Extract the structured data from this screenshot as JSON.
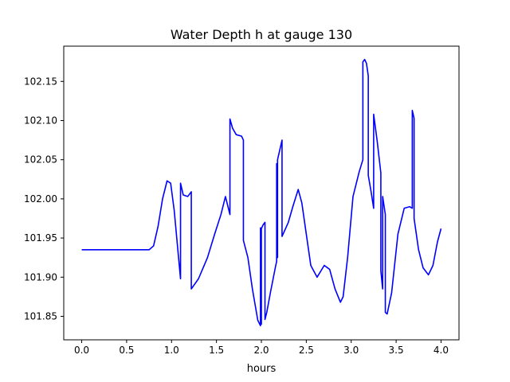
{
  "chart_data": {
    "type": "line",
    "title": "Water Depth h at gauge 130",
    "xlabel": "hours",
    "ylabel": "",
    "xlim": [
      -0.2,
      4.2
    ],
    "ylim": [
      101.82,
      102.195
    ],
    "x_ticks": [
      0.0,
      0.5,
      1.0,
      1.5,
      2.0,
      2.5,
      3.0,
      3.5,
      4.0
    ],
    "x_tick_labels": [
      "0.0",
      "0.5",
      "1.0",
      "1.5",
      "2.0",
      "2.5",
      "3.0",
      "3.5",
      "4.0"
    ],
    "y_ticks": [
      101.85,
      101.9,
      101.95,
      102.0,
      102.05,
      102.1,
      102.15
    ],
    "y_tick_labels": [
      "101.85",
      "101.90",
      "101.95",
      "102.00",
      "102.05",
      "102.10",
      "102.15"
    ],
    "grid": false,
    "legend": null,
    "series": [
      {
        "color": "#0000ff",
        "x": [
          0.0,
          0.3,
          0.6,
          0.75,
          0.8,
          0.85,
          0.9,
          0.95,
          0.99,
          1.03,
          1.07,
          1.1,
          1.1,
          1.13,
          1.18,
          1.22,
          1.22,
          1.3,
          1.4,
          1.48,
          1.55,
          1.6,
          1.65,
          1.65,
          1.68,
          1.72,
          1.78,
          1.8,
          1.8,
          1.85,
          1.9,
          1.96,
          1.99,
          1.99,
          2.0,
          2.0,
          2.02,
          2.04,
          2.04,
          2.06,
          2.1,
          2.16,
          2.17,
          2.17,
          2.18,
          2.18,
          2.23,
          2.23,
          2.3,
          2.35,
          2.41,
          2.45,
          2.5,
          2.55,
          2.62,
          2.7,
          2.76,
          2.82,
          2.88,
          2.91,
          2.96,
          3.02,
          3.09,
          3.13,
          3.13,
          3.15,
          3.17,
          3.19,
          3.19,
          3.22,
          3.25,
          3.25,
          3.29,
          3.33,
          3.33,
          3.35,
          3.35,
          3.38,
          3.38,
          3.4,
          3.45,
          3.52,
          3.59,
          3.65,
          3.68,
          3.68,
          3.7,
          3.7,
          3.75,
          3.8,
          3.86,
          3.91,
          3.96,
          4.0
        ],
        "y": [
          101.935,
          101.935,
          101.935,
          101.935,
          101.94,
          101.965,
          102.0,
          102.023,
          102.02,
          101.985,
          101.935,
          101.898,
          102.02,
          102.005,
          102.003,
          102.009,
          101.885,
          101.898,
          101.925,
          101.955,
          101.98,
          102.003,
          101.98,
          102.102,
          102.09,
          102.082,
          102.08,
          102.075,
          101.947,
          101.925,
          101.885,
          101.845,
          101.838,
          101.963,
          101.84,
          101.962,
          101.967,
          101.97,
          101.846,
          101.855,
          101.88,
          101.915,
          101.92,
          102.045,
          101.925,
          102.05,
          102.075,
          101.952,
          101.97,
          101.99,
          102.012,
          101.995,
          101.955,
          101.915,
          101.9,
          101.915,
          101.91,
          101.885,
          101.868,
          101.875,
          101.925,
          102.003,
          102.035,
          102.05,
          102.175,
          102.178,
          102.173,
          102.157,
          102.03,
          102.01,
          101.988,
          102.108,
          102.073,
          102.033,
          101.908,
          101.885,
          102.003,
          101.98,
          101.855,
          101.853,
          101.88,
          101.955,
          101.988,
          101.99,
          101.988,
          102.113,
          102.103,
          101.975,
          101.935,
          101.912,
          101.903,
          101.915,
          101.945,
          101.962
        ]
      }
    ]
  }
}
